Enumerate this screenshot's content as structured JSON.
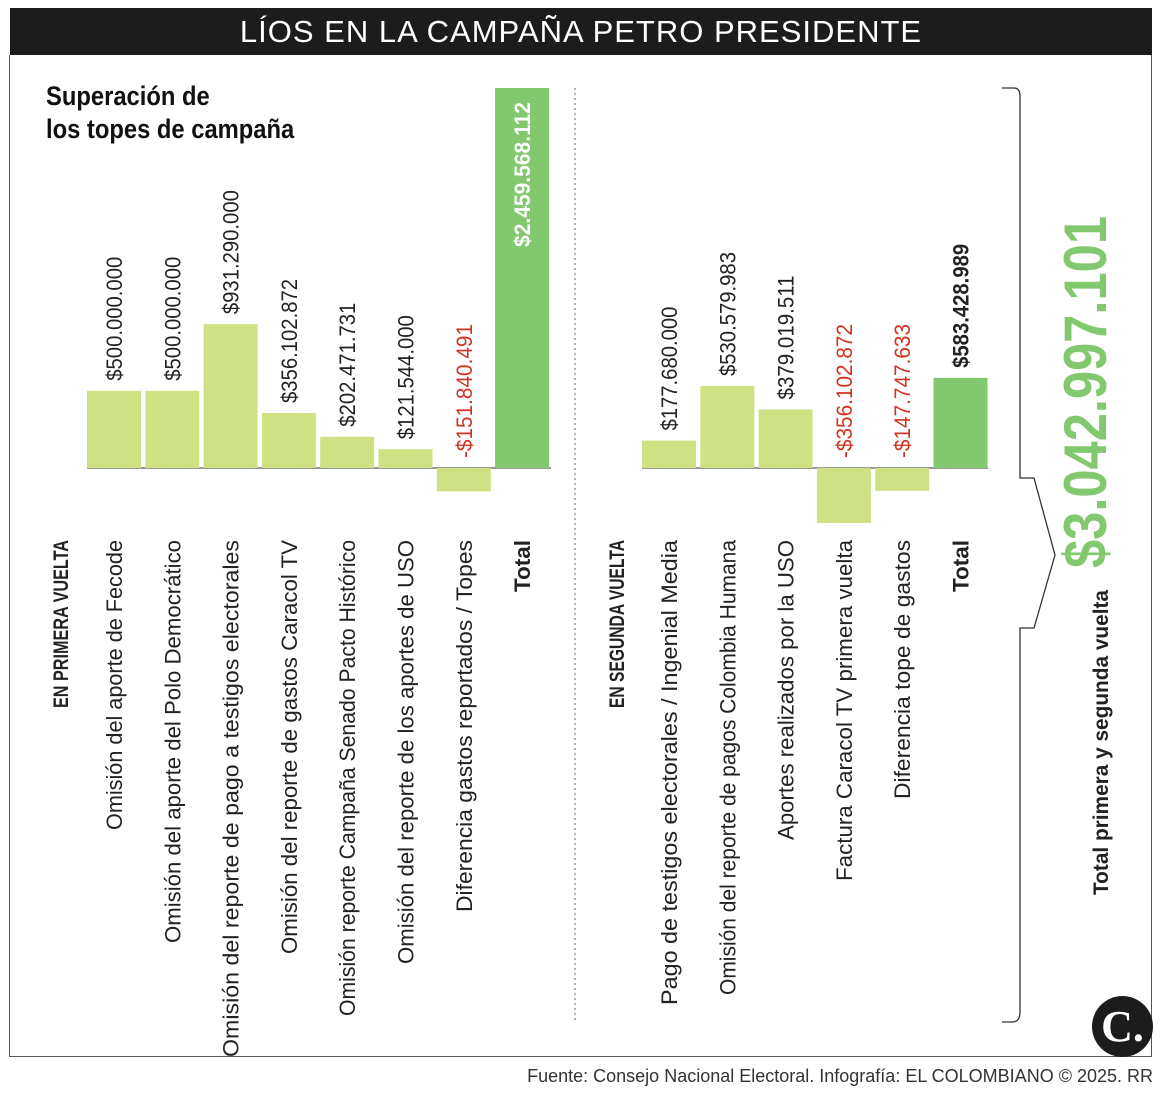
{
  "header": {
    "title": "LÍOS EN LA CAMPAÑA PETRO PRESIDENTE"
  },
  "subtitle": "Superación de\nlos topes de campaña",
  "footer": "Fuente: Consejo Nacional Electoral. Infografía: EL COLOMBIANO © 2025. RR",
  "logo": "C.",
  "colors": {
    "bar": "#cfe283",
    "total": "#82c86e",
    "negative": "#d1321f",
    "text": "#222222",
    "header_bg": "#1c1c1c"
  },
  "chart_data": [
    {
      "type": "bar",
      "group_label": "EN PRIMERA VUELTA",
      "categories": [
        "Omisión del aporte de Fecode",
        "Omisión del aporte del Polo Democrático",
        "Omisión del reporte de pago a testigos electorales",
        "Omisión del reporte de gastos Caracol TV",
        "Omisión reporte Campaña Senado Pacto Histórico",
        "Omisión del reporte de los aportes de USO",
        "Diferencia gastos reportados / Topes",
        "Total"
      ],
      "values": [
        500000000,
        500000000,
        931290000,
        356102872,
        202471731,
        121544000,
        -151840491,
        2459568112
      ],
      "value_labels": [
        "$500.000.000",
        "$500.000.000",
        "$931.290.000",
        "$356.102.872",
        "$202.471.731",
        "$121.544.000",
        "-$151.840.491",
        "$2.459.568.112"
      ]
    },
    {
      "type": "bar",
      "group_label": "EN SEGUNDA VUELTA",
      "categories": [
        "Pago de testigos electorales / Ingenial Media",
        "Omisión del reporte de pagos Colombia Humana",
        "Aportes realizados por la USO",
        "Factura Caracol TV primera vuelta",
        "Diferencia tope de gastos",
        "Total"
      ],
      "values": [
        177680000,
        530579983,
        379019511,
        -356102872,
        -147747633,
        583428989
      ],
      "value_labels": [
        "$177.680.000",
        "$530.579.983",
        "$379.019.511",
        "-$356.102.872",
        "-$147.747.633",
        "$583.428.989"
      ]
    }
  ],
  "grand_total": {
    "value": "$3.042.997.101",
    "label": "Total primera y segunda vuelta"
  }
}
